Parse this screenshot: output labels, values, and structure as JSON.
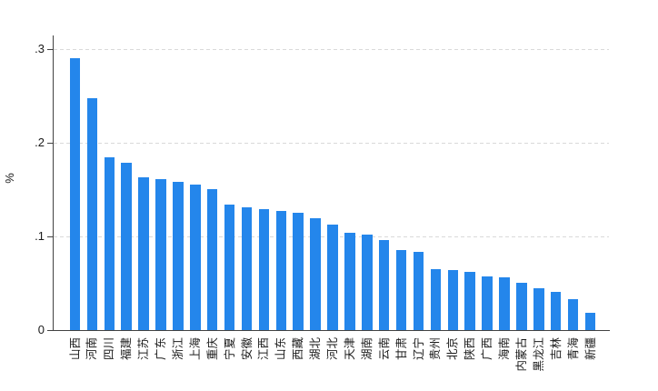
{
  "chart_data": {
    "type": "bar",
    "title": "",
    "ylabel": "%",
    "xlabel": "",
    "categories": [
      "山西",
      "河南",
      "四川",
      "福建",
      "江苏",
      "广东",
      "浙江",
      "上海",
      "重庆",
      "宁夏",
      "安徽",
      "江西",
      "山东",
      "西藏",
      "湖北",
      "河北",
      "天津",
      "湖南",
      "云南",
      "甘肃",
      "辽宁",
      "贵州",
      "北京",
      "陕西",
      "广西",
      "海南",
      "内蒙古",
      "黑龙江",
      "吉林",
      "青海",
      "新疆"
    ],
    "values": [
      0.29,
      0.247,
      0.184,
      0.178,
      0.163,
      0.161,
      0.158,
      0.155,
      0.15,
      0.134,
      0.131,
      0.129,
      0.127,
      0.125,
      0.119,
      0.113,
      0.104,
      0.102,
      0.096,
      0.085,
      0.083,
      0.065,
      0.064,
      0.062,
      0.057,
      0.056,
      0.05,
      0.045,
      0.041,
      0.033,
      0.018
    ],
    "ylim": [
      0,
      0.314
    ],
    "ytick_values": [
      0,
      0.1,
      0.2,
      0.3
    ],
    "ytick_labels": [
      "0",
      ".1",
      ".2",
      ".3"
    ],
    "grid": "horizontal-dashed",
    "legend": "none",
    "bar_color": "#2486eb",
    "axis_color": "#424242",
    "gridline_color": "#d9d9d9"
  }
}
